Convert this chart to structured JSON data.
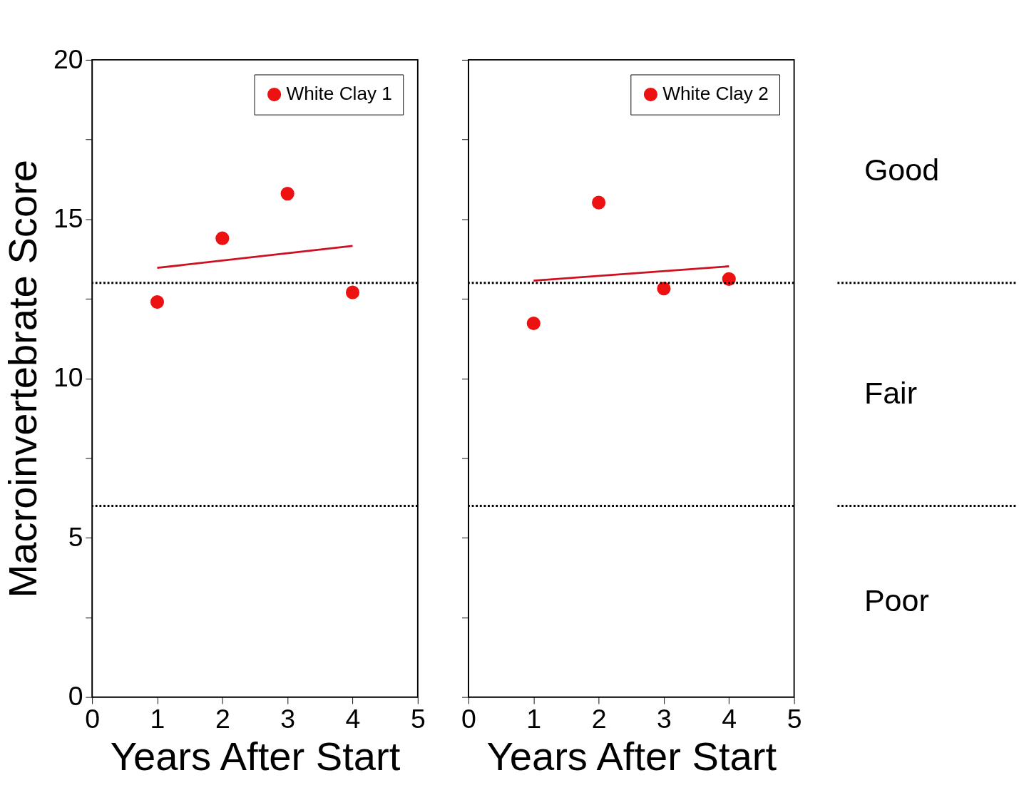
{
  "chart_data": [
    {
      "type": "scatter",
      "xlabel": "Years After Start",
      "ylabel": "Macroinvertebrate Score",
      "xlim": [
        0,
        5
      ],
      "xticks": [
        0,
        1,
        2,
        3,
        4,
        5
      ],
      "ylim": [
        0,
        20
      ],
      "yticks": [
        0,
        {
          "value": 2.5,
          "label": null
        },
        5,
        {
          "value": 7.5,
          "label": null
        },
        10,
        {
          "value": 12.5,
          "label": null
        },
        15,
        {
          "value": 17.5,
          "label": null
        },
        20
      ],
      "legend": "top right",
      "marker": "circle",
      "grid": false,
      "series": [
        {
          "name": "White Clay 1",
          "color": "#ee1111",
          "x": [
            1,
            2,
            3,
            4
          ],
          "values": [
            12.4,
            14.4,
            15.8,
            12.7
          ]
        },
        {
          "type": "line",
          "marker": "none",
          "color": "#cc1122",
          "x": [
            1,
            4
          ],
          "values": [
            13.47,
            14.16
          ]
        }
      ],
      "ref_lines": [
        {
          "axis": "y",
          "value": 13,
          "line_style": "dotted",
          "color": "#000000"
        },
        {
          "axis": "y",
          "value": 6,
          "line_style": "dotted",
          "color": "#000000"
        }
      ]
    },
    {
      "type": "scatter",
      "xlabel": "Years After Start",
      "xlim": [
        0,
        5
      ],
      "xticks": [
        0,
        1,
        2,
        3,
        4,
        5
      ],
      "ylim": [
        0,
        20
      ],
      "yticks": [
        {
          "value": 0,
          "label": null
        },
        {
          "value": 2.5,
          "label": null
        },
        {
          "value": 5,
          "label": null
        },
        {
          "value": 7.5,
          "label": null
        },
        {
          "value": 10,
          "label": null
        },
        {
          "value": 12.5,
          "label": null
        },
        {
          "value": 15,
          "label": null
        },
        {
          "value": 17.5,
          "label": null
        },
        {
          "value": 20,
          "label": null
        }
      ],
      "tick_labels": "x",
      "legend": "top right",
      "marker": "circle",
      "grid": false,
      "series": [
        {
          "name": "White Clay 2",
          "color": "#ee1111",
          "x": [
            1,
            2,
            3,
            4
          ],
          "values": [
            11.73,
            15.52,
            12.82,
            13.12
          ]
        },
        {
          "type": "line",
          "marker": "none",
          "color": "#cc1122",
          "x": [
            1,
            4
          ],
          "values": [
            13.07,
            13.52
          ]
        }
      ],
      "ref_lines": [
        {
          "axis": "y",
          "value": 13,
          "line_style": "dotted",
          "color": "#000000"
        },
        {
          "axis": "y",
          "value": 6,
          "line_style": "dotted",
          "color": "#000000"
        }
      ],
      "annotations": [
        "Good",
        "Fair",
        "Poor"
      ]
    }
  ]
}
